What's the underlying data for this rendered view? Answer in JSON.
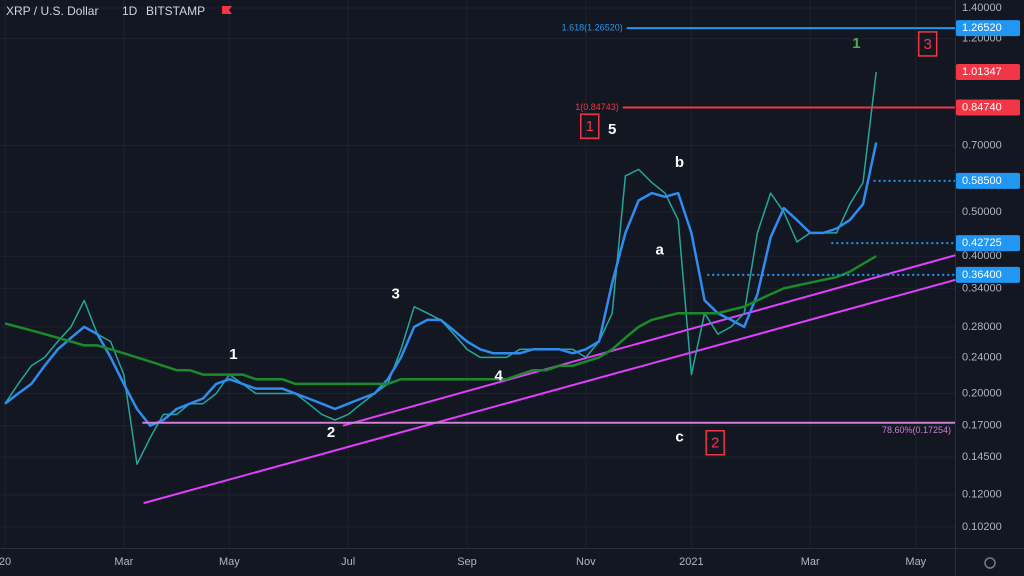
{
  "chart_data": {
    "type": "line",
    "title": "XRP / U.S. Dollar",
    "interval": "1D",
    "exchange": "BITSTAMP",
    "log_scale": true,
    "grid": true,
    "categories": [
      "20",
      null,
      null,
      null,
      null,
      null,
      null,
      null,
      null,
      "Mar",
      null,
      null,
      null,
      null,
      null,
      null,
      null,
      "May",
      null,
      null,
      null,
      null,
      null,
      null,
      null,
      null,
      "Jul",
      null,
      null,
      null,
      null,
      null,
      null,
      null,
      null,
      "Sep",
      null,
      null,
      null,
      null,
      null,
      null,
      null,
      null,
      "Nov",
      null,
      null,
      null,
      null,
      null,
      null,
      null,
      "2021",
      null,
      null,
      null,
      null,
      null,
      null,
      null,
      null,
      "Mar",
      null,
      null,
      null,
      null,
      null,
      null,
      null,
      "May",
      null,
      null
    ],
    "series": [
      {
        "color": "#26a69a",
        "values": [
          0.19,
          0.21,
          0.23,
          0.24,
          0.26,
          0.28,
          0.32,
          0.27,
          0.26,
          0.22,
          0.14,
          0.16,
          0.18,
          0.18,
          0.19,
          0.19,
          0.2,
          0.22,
          0.21,
          0.2,
          0.2,
          0.2,
          0.2,
          0.19,
          0.18,
          0.175,
          0.18,
          0.19,
          0.2,
          0.21,
          0.25,
          0.31,
          0.3,
          0.29,
          0.27,
          0.25,
          0.24,
          0.24,
          0.24,
          0.25,
          0.25,
          0.25,
          0.25,
          0.25,
          0.24,
          0.26,
          0.3,
          0.6,
          0.62,
          0.58,
          0.55,
          0.48,
          0.22,
          0.3,
          0.27,
          0.28,
          0.3,
          0.45,
          0.55,
          0.5,
          0.43,
          0.45,
          0.45,
          0.45,
          0.52,
          0.58,
          1.01347,
          null,
          null,
          null,
          null,
          null
        ]
      },
      {
        "color": "#2f8cf0",
        "values": [
          0.19,
          0.2,
          0.21,
          0.23,
          0.25,
          0.265,
          0.28,
          0.27,
          0.24,
          0.21,
          0.185,
          0.17,
          0.175,
          0.185,
          0.19,
          0.195,
          0.21,
          0.215,
          0.21,
          0.205,
          0.205,
          0.205,
          0.2,
          0.195,
          0.19,
          0.185,
          0.19,
          0.195,
          0.2,
          0.215,
          0.24,
          0.28,
          0.29,
          0.29,
          0.275,
          0.26,
          0.25,
          0.245,
          0.245,
          0.245,
          0.25,
          0.25,
          0.25,
          0.245,
          0.25,
          0.26,
          0.35,
          0.45,
          0.53,
          0.55,
          0.54,
          0.55,
          0.45,
          0.32,
          0.3,
          0.29,
          0.28,
          0.33,
          0.44,
          0.51,
          0.48,
          0.45,
          0.45,
          0.46,
          0.48,
          0.52,
          0.71,
          null,
          null,
          null,
          null,
          null
        ]
      },
      {
        "color": "#1b8a2a",
        "values": [
          0.285,
          0.28,
          0.275,
          0.27,
          0.265,
          0.26,
          0.255,
          0.255,
          0.25,
          0.245,
          0.24,
          0.235,
          0.23,
          0.225,
          0.225,
          0.22,
          0.22,
          0.22,
          0.22,
          0.215,
          0.215,
          0.215,
          0.21,
          0.21,
          0.21,
          0.21,
          0.21,
          0.21,
          0.21,
          0.21,
          0.215,
          0.215,
          0.215,
          0.215,
          0.215,
          0.215,
          0.215,
          0.215,
          0.215,
          0.22,
          0.225,
          0.225,
          0.23,
          0.23,
          0.235,
          0.24,
          0.25,
          0.265,
          0.28,
          0.29,
          0.295,
          0.3,
          0.3,
          0.3,
          0.3,
          0.305,
          0.31,
          0.32,
          0.33,
          0.34,
          0.345,
          0.35,
          0.355,
          0.36,
          0.37,
          0.385,
          0.4,
          null,
          null,
          null,
          null,
          null
        ]
      }
    ],
    "ylim": [
      0.0917,
      1.458
    ],
    "yticks": [
      {
        "value": 1.4,
        "label": "1.40000"
      },
      {
        "value": 1.2,
        "label": "1.20000"
      },
      {
        "value": 0.7,
        "label": "0.70000"
      },
      {
        "value": 0.5,
        "label": "0.50000"
      },
      {
        "value": 0.4,
        "label": "0.40000"
      },
      {
        "value": 0.34,
        "label": "0.34000"
      },
      {
        "value": 0.28,
        "label": "0.28000"
      },
      {
        "value": 0.24,
        "label": "0.24000"
      },
      {
        "value": 0.2,
        "label": "0.20000"
      },
      {
        "value": 0.17,
        "label": "0.17000"
      },
      {
        "value": 0.145,
        "label": "0.14500"
      },
      {
        "value": 0.12,
        "label": "0.12000"
      },
      {
        "value": 0.102,
        "label": "0.10200"
      }
    ],
    "levels": [
      {
        "value": 1.2652,
        "start": 47.1,
        "color": "#2196f3",
        "style": "solid",
        "label": "1.618(1.26520)",
        "tag": "1.26520"
      },
      {
        "value": 0.8474,
        "start": 46.8,
        "color": "#f23645",
        "style": "solid",
        "label": "1(0.84743)",
        "tag": "0.84740"
      },
      {
        "value": 0.585,
        "start": 65.8,
        "color": "#2196f3",
        "style": "dotted",
        "tag": "0.58500"
      },
      {
        "value": 0.42725,
        "start": 62.6,
        "color": "#2196f3",
        "style": "dotted",
        "tag": "0.42725"
      },
      {
        "value": 0.364,
        "start": 53.2,
        "color": "#2196f3",
        "style": "dotted",
        "tag": "0.36400"
      },
      {
        "value": 0.17254,
        "start": 10.4,
        "color": "#d07fd6",
        "style": "solid",
        "label": "78.60%(0.17254)"
      }
    ],
    "last_price": {
      "value": 1.01347,
      "label": "1.01347",
      "color": "#f23645"
    },
    "trend_lines": [
      {
        "color": "#e040fb",
        "from": [
          10.5,
          0.115
        ],
        "to": [
          72,
          0.355
        ]
      },
      {
        "color": "#e040fb",
        "from": [
          25.6,
          0.17
        ],
        "to": [
          72,
          0.402
        ]
      }
    ],
    "wave_labels": [
      {
        "text": "1",
        "at": [
          17.3,
          0.243
        ],
        "color": "#ffffff"
      },
      {
        "text": "2",
        "at": [
          24.7,
          0.1637
        ],
        "color": "#ffffff"
      },
      {
        "text": "3",
        "at": [
          29.6,
          0.33
        ],
        "color": "#ffffff"
      },
      {
        "text": "4",
        "at": [
          37.4,
          0.218
        ],
        "color": "#ffffff"
      },
      {
        "text": "5",
        "at": [
          46,
          0.756
        ],
        "color": "#ffffff"
      },
      {
        "text": "a",
        "at": [
          49.6,
          0.412
        ],
        "color": "#ffffff"
      },
      {
        "text": "b",
        "at": [
          51.1,
          0.64
        ],
        "color": "#ffffff"
      },
      {
        "text": "c",
        "at": [
          51.1,
          0.16
        ],
        "color": "#ffffff"
      },
      {
        "text": "1",
        "at": [
          64.5,
          1.168
        ],
        "color": "#4caf50"
      }
    ],
    "box_labels": [
      {
        "text": "1",
        "at": [
          44.3,
          0.771
        ]
      },
      {
        "text": "2",
        "at": [
          53.8,
          0.156
        ]
      },
      {
        "text": "3",
        "at": [
          69.9,
          1.168
        ]
      }
    ]
  }
}
